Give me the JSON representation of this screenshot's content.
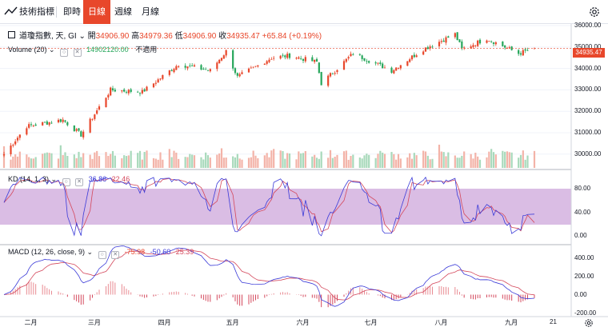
{
  "toolbar": {
    "indicators_label": "技術指標",
    "tabs": [
      {
        "label": "即時",
        "active": false
      },
      {
        "label": "日線",
        "active": true
      },
      {
        "label": "週線",
        "active": false
      },
      {
        "label": "月線",
        "active": false
      }
    ],
    "settings_icon": "gear-icon"
  },
  "main_legend": {
    "symbol": "道瓊指數, 天, GI",
    "open_label": "開",
    "open_value": "34906.90",
    "high_label": "高",
    "high_value": "34979.36",
    "low_label": "低",
    "low_value": "34906.90",
    "close_label": "收",
    "close_value": "34935.47",
    "change": "+65.84 (+0.19%)"
  },
  "volume_legend": {
    "label": "Volume (20)",
    "value": "14902120.00",
    "note": "不適用"
  },
  "kd_legend": {
    "label": "KD (14, 1, 3)",
    "k_value": "36.86",
    "d_value": "22.46"
  },
  "macd_legend": {
    "label": "MACD (12, 26, close, 9)",
    "hist_value": "-75.98",
    "macd_value": "-50.60",
    "signal_value": "25.39"
  },
  "price_axis": [
    "36000.00",
    "35000.00",
    "34000.00",
    "33000.00",
    "32000.00",
    "31000.00",
    "30000.00"
  ],
  "kd_axis": [
    "80.00",
    "40.00",
    "0.00"
  ],
  "macd_axis": [
    "400.00",
    "200.00",
    "0.00",
    "-200.00"
  ],
  "last_price_tag": "34935.47",
  "x_axis": {
    "months": [
      "二月",
      "三月",
      "四月",
      "五月",
      "六月",
      "七月",
      "八月",
      "九月"
    ],
    "end_label": "21"
  },
  "colors": {
    "up": "#e8472b",
    "down": "#26a65b",
    "accent": "#e8472b",
    "k_line": "#3b3bd8",
    "d_line": "#d4485c",
    "kd_band": "#d3b1df"
  },
  "chart_data": {
    "type": "candlestick",
    "title": "道瓊指數, 天, GI",
    "date_range": [
      "2021-01-29",
      "2021-09-20"
    ],
    "x_months": [
      "二月",
      "三月",
      "四月",
      "五月",
      "六月",
      "七月",
      "八月",
      "九月"
    ],
    "anchor_closes": [
      [
        "2021-01-29",
        30000
      ],
      [
        "2021-02-08",
        31300
      ],
      [
        "2021-02-24",
        31600
      ],
      [
        "2021-03-04",
        30900
      ],
      [
        "2021-03-17",
        33000
      ],
      [
        "2021-03-31",
        32900
      ],
      [
        "2021-04-16",
        34200
      ],
      [
        "2021-04-30",
        33900
      ],
      [
        "2021-05-07",
        34800
      ],
      [
        "2021-05-12",
        33600
      ],
      [
        "2021-05-27",
        34500
      ],
      [
        "2021-06-04",
        34600
      ],
      [
        "2021-06-16",
        34300
      ],
      [
        "2021-06-18",
        33300
      ],
      [
        "2021-07-02",
        34700
      ],
      [
        "2021-07-19",
        33900
      ],
      [
        "2021-08-02",
        34900
      ],
      [
        "2021-08-16",
        35600
      ],
      [
        "2021-08-19",
        34900
      ],
      [
        "2021-08-30",
        35400
      ],
      [
        "2021-09-13",
        34700
      ],
      [
        "2021-09-20",
        34935.47
      ]
    ],
    "last_bar": {
      "open": 34906.9,
      "high": 34979.36,
      "low": 34906.9,
      "close": 34935.47,
      "change": 65.84,
      "change_pct": 0.19
    },
    "price_range": [
      29600,
      36200
    ],
    "volume": {
      "period": 20,
      "last": 14902120
    },
    "kd": {
      "params": [
        14,
        1,
        3
      ],
      "k": 36.86,
      "d": 22.46,
      "ylim": [
        -5,
        100
      ],
      "band": [
        20,
        80
      ]
    },
    "macd": {
      "params": [
        12,
        26,
        9
      ],
      "histogram": -75.98,
      "macd": -50.6,
      "signal": 25.39,
      "ylim": [
        -250,
        450
      ]
    }
  }
}
